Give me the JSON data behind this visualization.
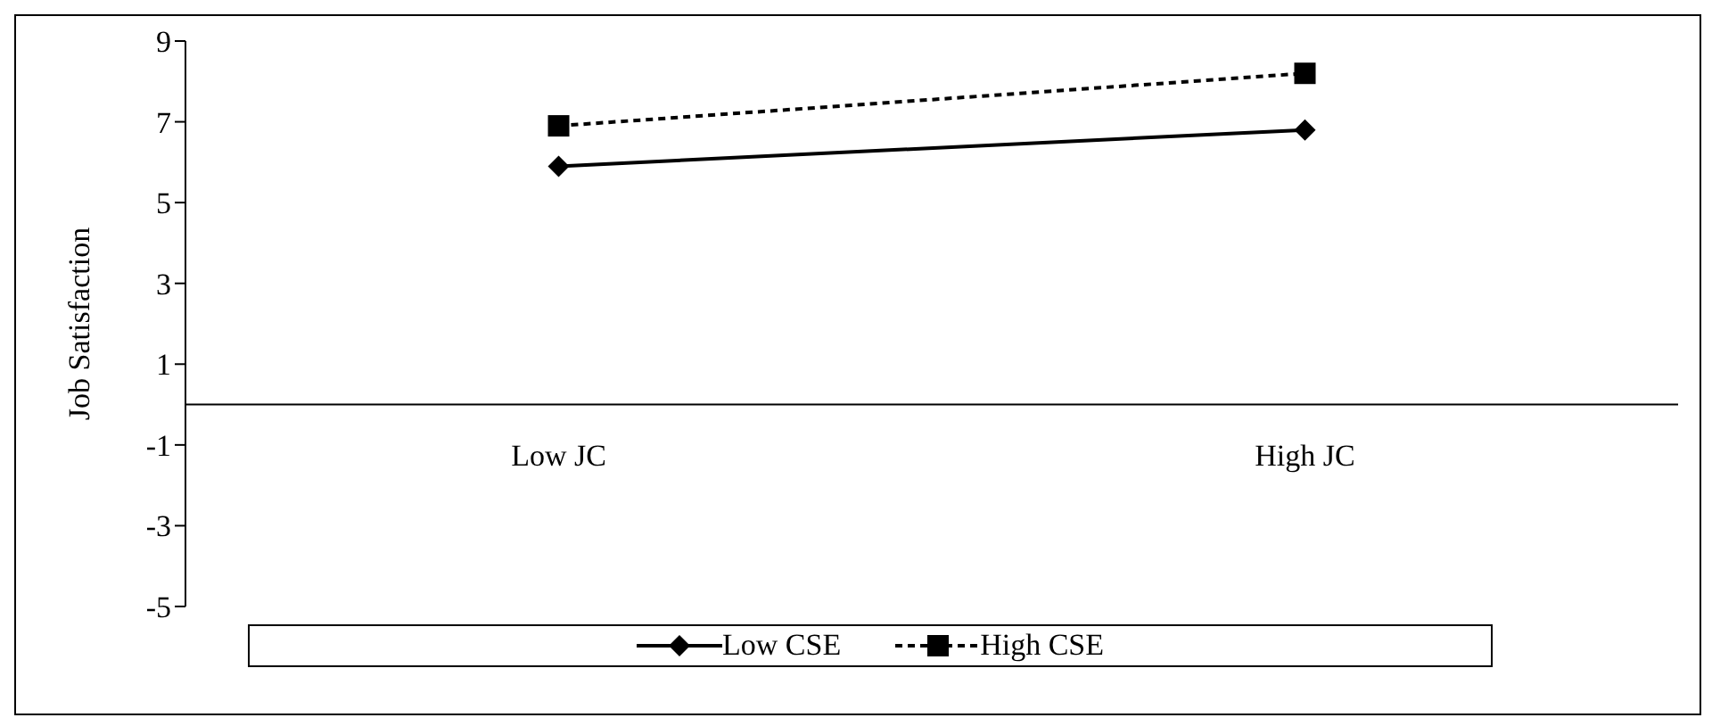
{
  "chart_data": {
    "type": "line",
    "ylabel": "Job Satisfaction",
    "categories": [
      "Low JC",
      "High JC"
    ],
    "series": [
      {
        "name": "Low CSE",
        "color": "#000000",
        "values": [
          5.9,
          6.8
        ],
        "marker": "diamond",
        "line_style": "solid"
      },
      {
        "name": "High CSE",
        "color": "#000000",
        "values": [
          6.9,
          8.2
        ],
        "marker": "square",
        "line_style": "dashed"
      }
    ],
    "ylim": [
      -5,
      9
    ],
    "yticks": [
      -5,
      -3,
      -1,
      1,
      3,
      5,
      7,
      9
    ],
    "grid": false,
    "legend": "bottom"
  }
}
